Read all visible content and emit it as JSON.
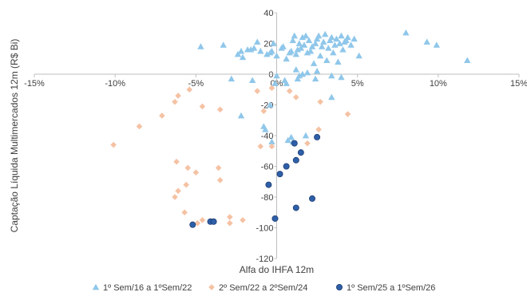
{
  "chart_data": {
    "type": "scatter",
    "xlabel": "Alfa do IHFA 12m",
    "ylabel": "Captação Líquida Multimercados 12m (R$ Bi)",
    "xlim": [
      -0.15,
      0.15
    ],
    "ylim": [
      -120,
      40
    ],
    "xticks": [
      -0.15,
      -0.1,
      -0.05,
      0.0,
      0.05,
      0.1,
      0.15
    ],
    "xtick_labels": [
      "-15%",
      "-10%",
      "-5%",
      "0%",
      "5%",
      "10%",
      "15%"
    ],
    "yticks": [
      40,
      20,
      0,
      -20,
      -40,
      -60,
      -80,
      -100,
      -120
    ],
    "ytick_labels": [
      "40",
      "20",
      "0",
      "-20",
      "-40",
      "-60",
      "-80",
      "-100",
      "-120"
    ],
    "grid": false,
    "legend_position": "bottom",
    "series": [
      {
        "name": "1º Sem/16 a 1ºSem/22",
        "marker": "triangle",
        "color": "#8FC7EA",
        "points": [
          [
            -0.047,
            18
          ],
          [
            -0.033,
            19
          ],
          [
            -0.024,
            13
          ],
          [
            -0.022,
            15
          ],
          [
            -0.021,
            11
          ],
          [
            -0.018,
            16
          ],
          [
            -0.016,
            16
          ],
          [
            -0.014,
            17
          ],
          [
            -0.012,
            21
          ],
          [
            -0.01,
            15
          ],
          [
            -0.006,
            13
          ],
          [
            -0.004,
            14
          ],
          [
            -0.003,
            15
          ],
          [
            -0.002,
            20
          ],
          [
            0.0,
            12
          ],
          [
            0.003,
            17
          ],
          [
            0.004,
            18
          ],
          [
            0.006,
            10
          ],
          [
            0.008,
            14
          ],
          [
            0.009,
            15
          ],
          [
            0.01,
            22
          ],
          [
            0.011,
            25
          ],
          [
            0.012,
            13
          ],
          [
            0.013,
            16
          ],
          [
            0.014,
            20
          ],
          [
            0.015,
            17
          ],
          [
            0.016,
            24
          ],
          [
            0.017,
            19
          ],
          [
            0.018,
            25
          ],
          [
            0.019,
            14
          ],
          [
            0.02,
            22
          ],
          [
            0.021,
            15
          ],
          [
            0.022,
            18
          ],
          [
            0.023,
            7
          ],
          [
            0.024,
            20
          ],
          [
            0.025,
            23
          ],
          [
            0.026,
            25
          ],
          [
            0.027,
            12
          ],
          [
            0.028,
            18
          ],
          [
            0.029,
            21
          ],
          [
            0.03,
            26
          ],
          [
            0.031,
            9
          ],
          [
            0.032,
            17
          ],
          [
            0.033,
            22
          ],
          [
            0.034,
            24
          ],
          [
            0.035,
            14
          ],
          [
            0.036,
            19
          ],
          [
            0.037,
            23
          ],
          [
            0.038,
            8
          ],
          [
            0.039,
            20
          ],
          [
            0.04,
            25
          ],
          [
            0.041,
            16
          ],
          [
            0.042,
            21
          ],
          [
            0.043,
            22
          ],
          [
            0.044,
            24
          ],
          [
            0.046,
            19
          ],
          [
            0.048,
            23
          ],
          [
            0.051,
            12
          ],
          [
            0.08,
            27
          ],
          [
            0.093,
            21
          ],
          [
            0.099,
            19
          ],
          [
            0.118,
            9
          ],
          [
            0.012,
            3
          ],
          [
            0.013,
            -3
          ],
          [
            0.014,
            -1
          ],
          [
            0.016,
            0
          ],
          [
            0.019,
            1
          ],
          [
            0.024,
            -3
          ],
          [
            0.025,
            2
          ],
          [
            0.034,
            -1
          ],
          [
            0.04,
            -2
          ],
          [
            0.005,
            -4
          ],
          [
            0.006,
            -6
          ],
          [
            0.0,
            -1
          ],
          [
            -0.001,
            -6
          ],
          [
            -0.015,
            -4
          ],
          [
            -0.028,
            -3
          ],
          [
            -0.004,
            -20
          ],
          [
            -0.008,
            -34
          ],
          [
            -0.007,
            -36
          ],
          [
            -0.003,
            -44
          ],
          [
            0.007,
            -43
          ],
          [
            0.009,
            -41
          ],
          [
            0.01,
            -44
          ],
          [
            0.018,
            -40
          ],
          [
            0.034,
            -15
          ],
          [
            -0.022,
            -27
          ]
        ]
      },
      {
        "name": "2º Sem/22 a 2ºSem/24",
        "marker": "diamond",
        "color": "#F5C2A4",
        "points": [
          [
            -0.101,
            -46
          ],
          [
            -0.085,
            -34
          ],
          [
            -0.071,
            -27
          ],
          [
            -0.063,
            -18
          ],
          [
            -0.061,
            -14
          ],
          [
            -0.054,
            -10
          ],
          [
            -0.046,
            -21
          ],
          [
            -0.035,
            -23
          ],
          [
            -0.012,
            -11
          ],
          [
            -0.008,
            -24
          ],
          [
            -0.003,
            -9
          ],
          [
            0.008,
            -11
          ],
          [
            0.012,
            -15
          ],
          [
            0.027,
            -18
          ],
          [
            0.044,
            -26
          ],
          [
            0.026,
            -36
          ],
          [
            0.019,
            -45
          ],
          [
            -0.003,
            -47
          ],
          [
            -0.01,
            -47
          ],
          [
            -0.062,
            -57
          ],
          [
            -0.055,
            -61
          ],
          [
            -0.05,
            -64
          ],
          [
            -0.036,
            -61
          ],
          [
            -0.035,
            -69
          ],
          [
            -0.056,
            -72
          ],
          [
            -0.061,
            -76
          ],
          [
            -0.063,
            -80
          ],
          [
            -0.057,
            -90
          ],
          [
            -0.046,
            -95
          ],
          [
            -0.049,
            -97
          ],
          [
            -0.029,
            -93
          ],
          [
            -0.029,
            -97
          ],
          [
            -0.021,
            -95
          ]
        ]
      },
      {
        "name": "1º Sem/25 a 1ºSem/26",
        "marker": "circle",
        "color": "#2E5FA8",
        "points": [
          [
            0.025,
            -41
          ],
          [
            0.011,
            -45
          ],
          [
            0.015,
            -51
          ],
          [
            0.012,
            -56
          ],
          [
            0.006,
            -60
          ],
          [
            0.002,
            -65
          ],
          [
            -0.005,
            -72
          ],
          [
            0.022,
            -81
          ],
          [
            0.012,
            -87
          ],
          [
            -0.001,
            -94
          ],
          [
            -0.041,
            -96
          ],
          [
            -0.039,
            -96
          ],
          [
            -0.052,
            -98
          ]
        ]
      }
    ]
  }
}
